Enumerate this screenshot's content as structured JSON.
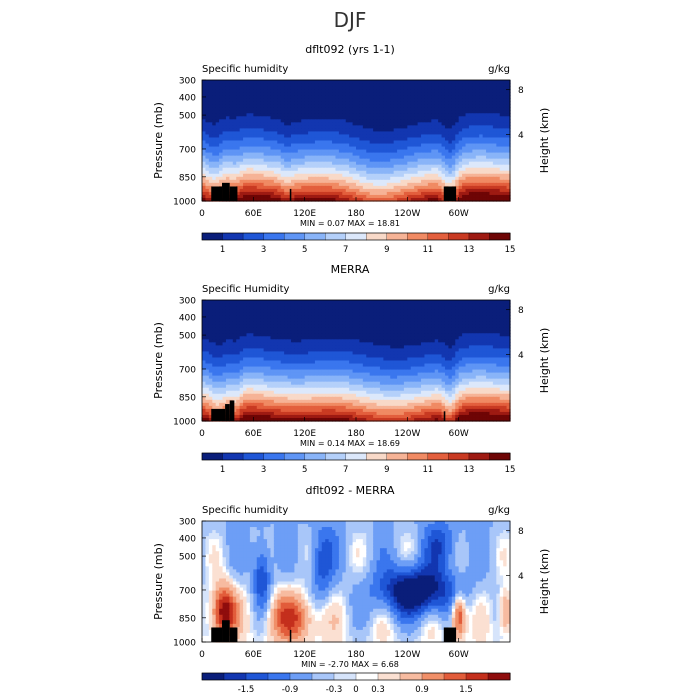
{
  "figure": {
    "title": "DJF"
  },
  "colors": {
    "seq_palette": [
      "#0a1e7a",
      "#1236b0",
      "#1f56d6",
      "#3a76ee",
      "#5f95f5",
      "#89b4f8",
      "#b4d0fa",
      "#dce8fb",
      "#f8d9c8",
      "#f6b396",
      "#f08a63",
      "#e35f3d",
      "#c93a22",
      "#9e1a12",
      "#6e0505"
    ],
    "diff_palette": [
      "#0a1e7a",
      "#1236b0",
      "#1f56d6",
      "#3a76ee",
      "#6d9ef6",
      "#a8c6f9",
      "#d6e4fb",
      "#ffffff",
      "#fbe0d2",
      "#f7bba0",
      "#f08f68",
      "#e25c3a",
      "#c42f1c",
      "#8f0d0d"
    ]
  },
  "chart_data": [
    {
      "type": "heatmap",
      "panel": "model",
      "title": "dflt092 (yrs 1-1)",
      "left_label": "Specific humidity",
      "unit_label": "g/kg",
      "ylabel": "Pressure (mb)",
      "ylabel_right": "Height (km)",
      "xticks": [
        "0",
        "60E",
        "120E",
        "180",
        "120W",
        "60W"
      ],
      "yticks": [
        "300",
        "400",
        "500",
        "700",
        "850",
        "1000"
      ],
      "yticks_right": [
        "8",
        "4"
      ],
      "stats_text": "MIN =     0.07   MAX =    18.81",
      "colorbar_labels": [
        "1",
        "3",
        "5",
        "7",
        "9",
        "11",
        "13",
        "15"
      ],
      "min": 0.07,
      "max": 18.81
    },
    {
      "type": "heatmap",
      "panel": "obs",
      "title": "MERRA",
      "left_label": "Specific Humidity",
      "unit_label": "g/kg",
      "ylabel": "Pressure (mb)",
      "ylabel_right": "Height (km)",
      "xticks": [
        "0",
        "60E",
        "120E",
        "180",
        "120W",
        "60W"
      ],
      "yticks": [
        "300",
        "400",
        "500",
        "700",
        "850",
        "1000"
      ],
      "yticks_right": [
        "8",
        "4"
      ],
      "stats_text": "MIN =     0.14   MAX =    18.69",
      "colorbar_labels": [
        "1",
        "3",
        "5",
        "7",
        "9",
        "11",
        "13",
        "15"
      ],
      "min": 0.14,
      "max": 18.69
    },
    {
      "type": "heatmap",
      "panel": "diff",
      "title": "dflt092 - MERRA",
      "left_label": "Specific humidity",
      "unit_label": "g/kg",
      "ylabel": "Pressure (mb)",
      "ylabel_right": "Height (km)",
      "xticks": [
        "0",
        "60E",
        "120E",
        "180",
        "120W",
        "60W"
      ],
      "yticks": [
        "300",
        "400",
        "500",
        "700",
        "850",
        "1000"
      ],
      "yticks_right": [
        "8",
        "4"
      ],
      "stats_text": "MIN =    -2.70   MAX =     6.68",
      "colorbar_labels": [
        "-1.5",
        "-0.9",
        "-0.3",
        "0",
        "0.3",
        "0.9",
        "1.5"
      ],
      "min": -2.7,
      "max": 6.68
    }
  ]
}
